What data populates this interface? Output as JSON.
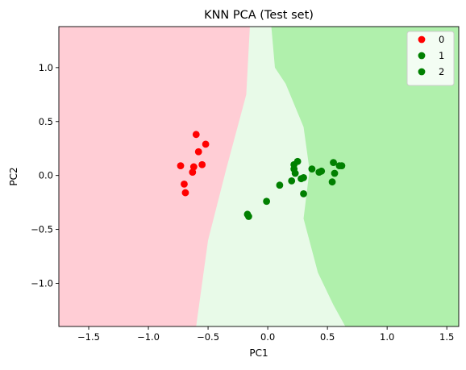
{
  "chart_data": {
    "type": "scatter",
    "title": "KNN PCA (Test set)",
    "xlabel": "PC1",
    "ylabel": "PC2",
    "xlim": [
      -1.75,
      1.6
    ],
    "ylim": [
      -1.4,
      1.38
    ],
    "x_ticks": [
      -1.5,
      -1.0,
      -0.5,
      0.0,
      0.5,
      1.0,
      1.5
    ],
    "x_tick_labels": [
      "−1.5",
      "−1.0",
      "−0.5",
      "0.0",
      "0.5",
      "1.0",
      "1.5"
    ],
    "y_ticks": [
      -1.0,
      -0.5,
      0.0,
      0.5,
      1.0
    ],
    "y_tick_labels": [
      "−1.0",
      "−0.5",
      "0.0",
      "0.5",
      "1.0"
    ],
    "grid": false,
    "legend_position": "top-right",
    "regions": {
      "colors": [
        "#ffcdd5",
        "#e8fae8",
        "#b0f0ac"
      ],
      "boundary_0_1": [
        [
          -0.15,
          1.38
        ],
        [
          -0.18,
          0.75
        ],
        [
          -0.35,
          0.05
        ],
        [
          -0.5,
          -0.6
        ],
        [
          -0.6,
          -1.4
        ]
      ],
      "boundary_1_2": [
        [
          0.03,
          1.38
        ],
        [
          0.06,
          1.0
        ],
        [
          0.15,
          0.85
        ],
        [
          0.3,
          0.45
        ],
        [
          0.35,
          0.05
        ],
        [
          0.3,
          -0.4
        ],
        [
          0.42,
          -0.9
        ],
        [
          0.55,
          -1.2
        ],
        [
          0.65,
          -1.4
        ]
      ]
    },
    "series": [
      {
        "name": "0",
        "color": "#ff0000",
        "points": [
          [
            -0.6,
            0.38
          ],
          [
            -0.52,
            0.29
          ],
          [
            -0.58,
            0.22
          ],
          [
            -0.73,
            0.09
          ],
          [
            -0.62,
            0.08
          ],
          [
            -0.55,
            0.1
          ],
          [
            -0.63,
            0.03
          ],
          [
            -0.7,
            -0.08
          ],
          [
            -0.69,
            -0.16
          ]
        ]
      },
      {
        "name": "1",
        "color": "#008000",
        "points": [
          [
            0.25,
            0.13
          ],
          [
            0.22,
            0.1
          ],
          [
            0.22,
            0.06
          ],
          [
            0.23,
            0.02
          ],
          [
            0.2,
            -0.05
          ],
          [
            0.28,
            -0.03
          ],
          [
            0.3,
            -0.02
          ],
          [
            0.1,
            -0.09
          ],
          [
            0.3,
            -0.17
          ],
          [
            -0.01,
            -0.24
          ],
          [
            -0.17,
            -0.36
          ],
          [
            -0.16,
            -0.38
          ]
        ]
      },
      {
        "name": "2",
        "color": "#008000",
        "points": [
          [
            0.37,
            0.06
          ],
          [
            0.43,
            0.03
          ],
          [
            0.45,
            0.04
          ],
          [
            0.55,
            0.12
          ],
          [
            0.56,
            0.02
          ],
          [
            0.6,
            0.09
          ],
          [
            0.62,
            0.09
          ],
          [
            0.54,
            -0.06
          ]
        ]
      }
    ]
  }
}
